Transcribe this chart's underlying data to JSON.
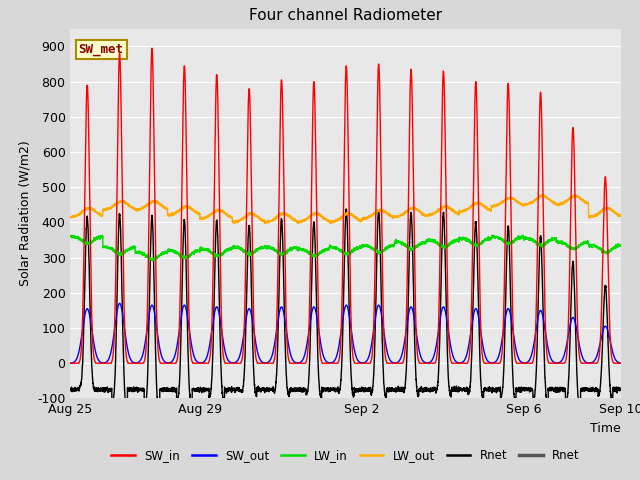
{
  "title": "Four channel Radiometer",
  "xlabel": "Time",
  "ylabel": "Solar Radiation (W/m2)",
  "ylim": [
    -100,
    950
  ],
  "yticks": [
    -100,
    0,
    100,
    200,
    300,
    400,
    500,
    600,
    700,
    800,
    900
  ],
  "fig_bg": "#d8d8d8",
  "plot_bg": "#e8e8e8",
  "annotation_text": "SW_met",
  "annotation_fg": "#880000",
  "annotation_bg": "#ffffcc",
  "annotation_border": "#aa8800",
  "sw_in_color": "#ff0000",
  "sw_out_color": "#0000ff",
  "lw_in_color": "#00dd00",
  "lw_out_color": "#ffaa00",
  "rnet_color": "#000000",
  "tick_labels": [
    "Aug 25",
    "Aug 29",
    "Sep 2",
    "Sep 6",
    "Sep 10"
  ],
  "tick_positions": [
    0,
    4,
    9,
    14,
    17
  ],
  "sw_in_peaks": [
    790,
    880,
    895,
    845,
    820,
    780,
    805,
    800,
    845,
    850,
    835,
    830,
    800,
    795,
    770,
    670,
    530
  ],
  "sw_out_peaks": [
    155,
    170,
    165,
    165,
    160,
    155,
    160,
    160,
    165,
    165,
    160,
    160,
    155,
    155,
    150,
    130,
    105
  ],
  "lw_in_base": [
    360,
    330,
    315,
    320,
    325,
    330,
    330,
    325,
    330,
    335,
    345,
    350,
    355,
    360,
    355,
    345,
    335
  ],
  "lw_out_base": [
    415,
    435,
    435,
    420,
    410,
    400,
    400,
    400,
    400,
    410,
    415,
    420,
    430,
    445,
    450,
    450,
    415
  ],
  "rnet_night": -75,
  "num_days": 17,
  "pts_per_day": 288
}
